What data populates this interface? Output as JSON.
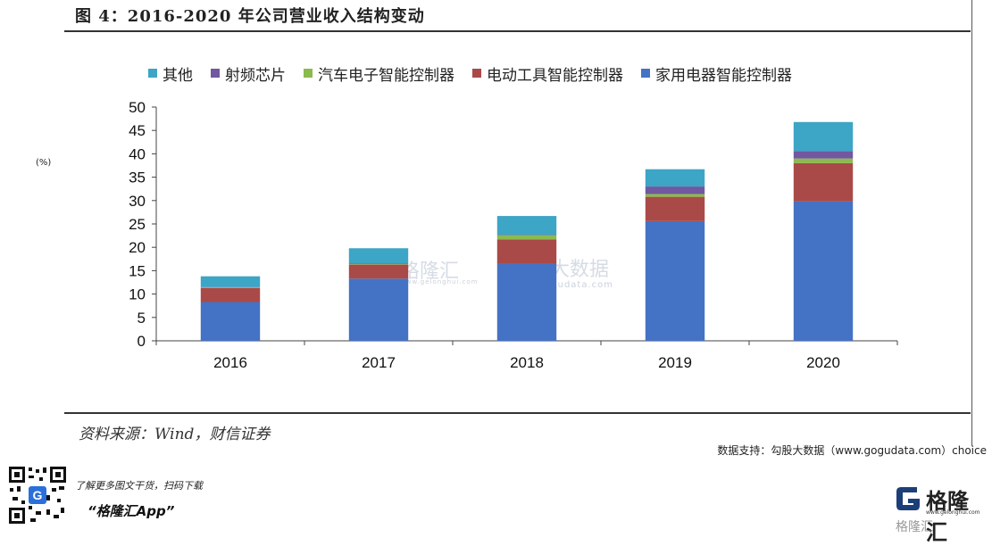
{
  "title": "图 4：2016-2020 年公司营业收入结构变动",
  "unit_label": "(%)",
  "source": "资料来源：Wind，财信证券",
  "data_support": "数据支持：勾股大数据（www.gogudata.com）choice",
  "promo": {
    "line1": "了解更多图文干货，扫码下载",
    "line2": "“格隆汇App”"
  },
  "brand": {
    "name": "格隆汇",
    "url": "www.gelonghui.com",
    "sub": "格隆汇"
  },
  "watermarks": {
    "gelonghui": "格隆汇",
    "gelonghui_url": "www.gelonghui.com",
    "gogudata": "勾股大数据",
    "gogudata_url": "www.gogudata.com"
  },
  "colors": {
    "home_appliance": "#4472C4",
    "power_tool": "#A94A48",
    "auto_electronics": "#8CBA4E",
    "rf_chip": "#7158A0",
    "other": "#3DA5C5"
  },
  "chart_data": {
    "type": "bar",
    "stacked": true,
    "categories": [
      "2016",
      "2017",
      "2018",
      "2019",
      "2020"
    ],
    "ylim": [
      0,
      50
    ],
    "yticks": [
      0,
      5,
      10,
      15,
      20,
      25,
      30,
      35,
      40,
      45,
      50
    ],
    "legend_position": "top",
    "grid": false,
    "series": [
      {
        "name": "家用电器智能控制器",
        "key": "home_appliance",
        "values": [
          8.3,
          13.3,
          16.5,
          25.6,
          29.8
        ]
      },
      {
        "name": "电动工具智能控制器",
        "key": "power_tool",
        "values": [
          3.0,
          3.0,
          5.2,
          5.2,
          8.2
        ]
      },
      {
        "name": "汽车电子智能控制器",
        "key": "auto_electronics",
        "values": [
          0.1,
          0.1,
          0.9,
          0.6,
          1.0
        ]
      },
      {
        "name": "射频芯片",
        "key": "rf_chip",
        "values": [
          0.1,
          0.1,
          0.1,
          1.6,
          1.6
        ]
      },
      {
        "name": "其他",
        "key": "other",
        "values": [
          2.3,
          3.3,
          4.0,
          3.7,
          6.2
        ]
      }
    ],
    "legend_order": [
      "other",
      "rf_chip",
      "auto_electronics",
      "power_tool",
      "home_appliance"
    ]
  }
}
